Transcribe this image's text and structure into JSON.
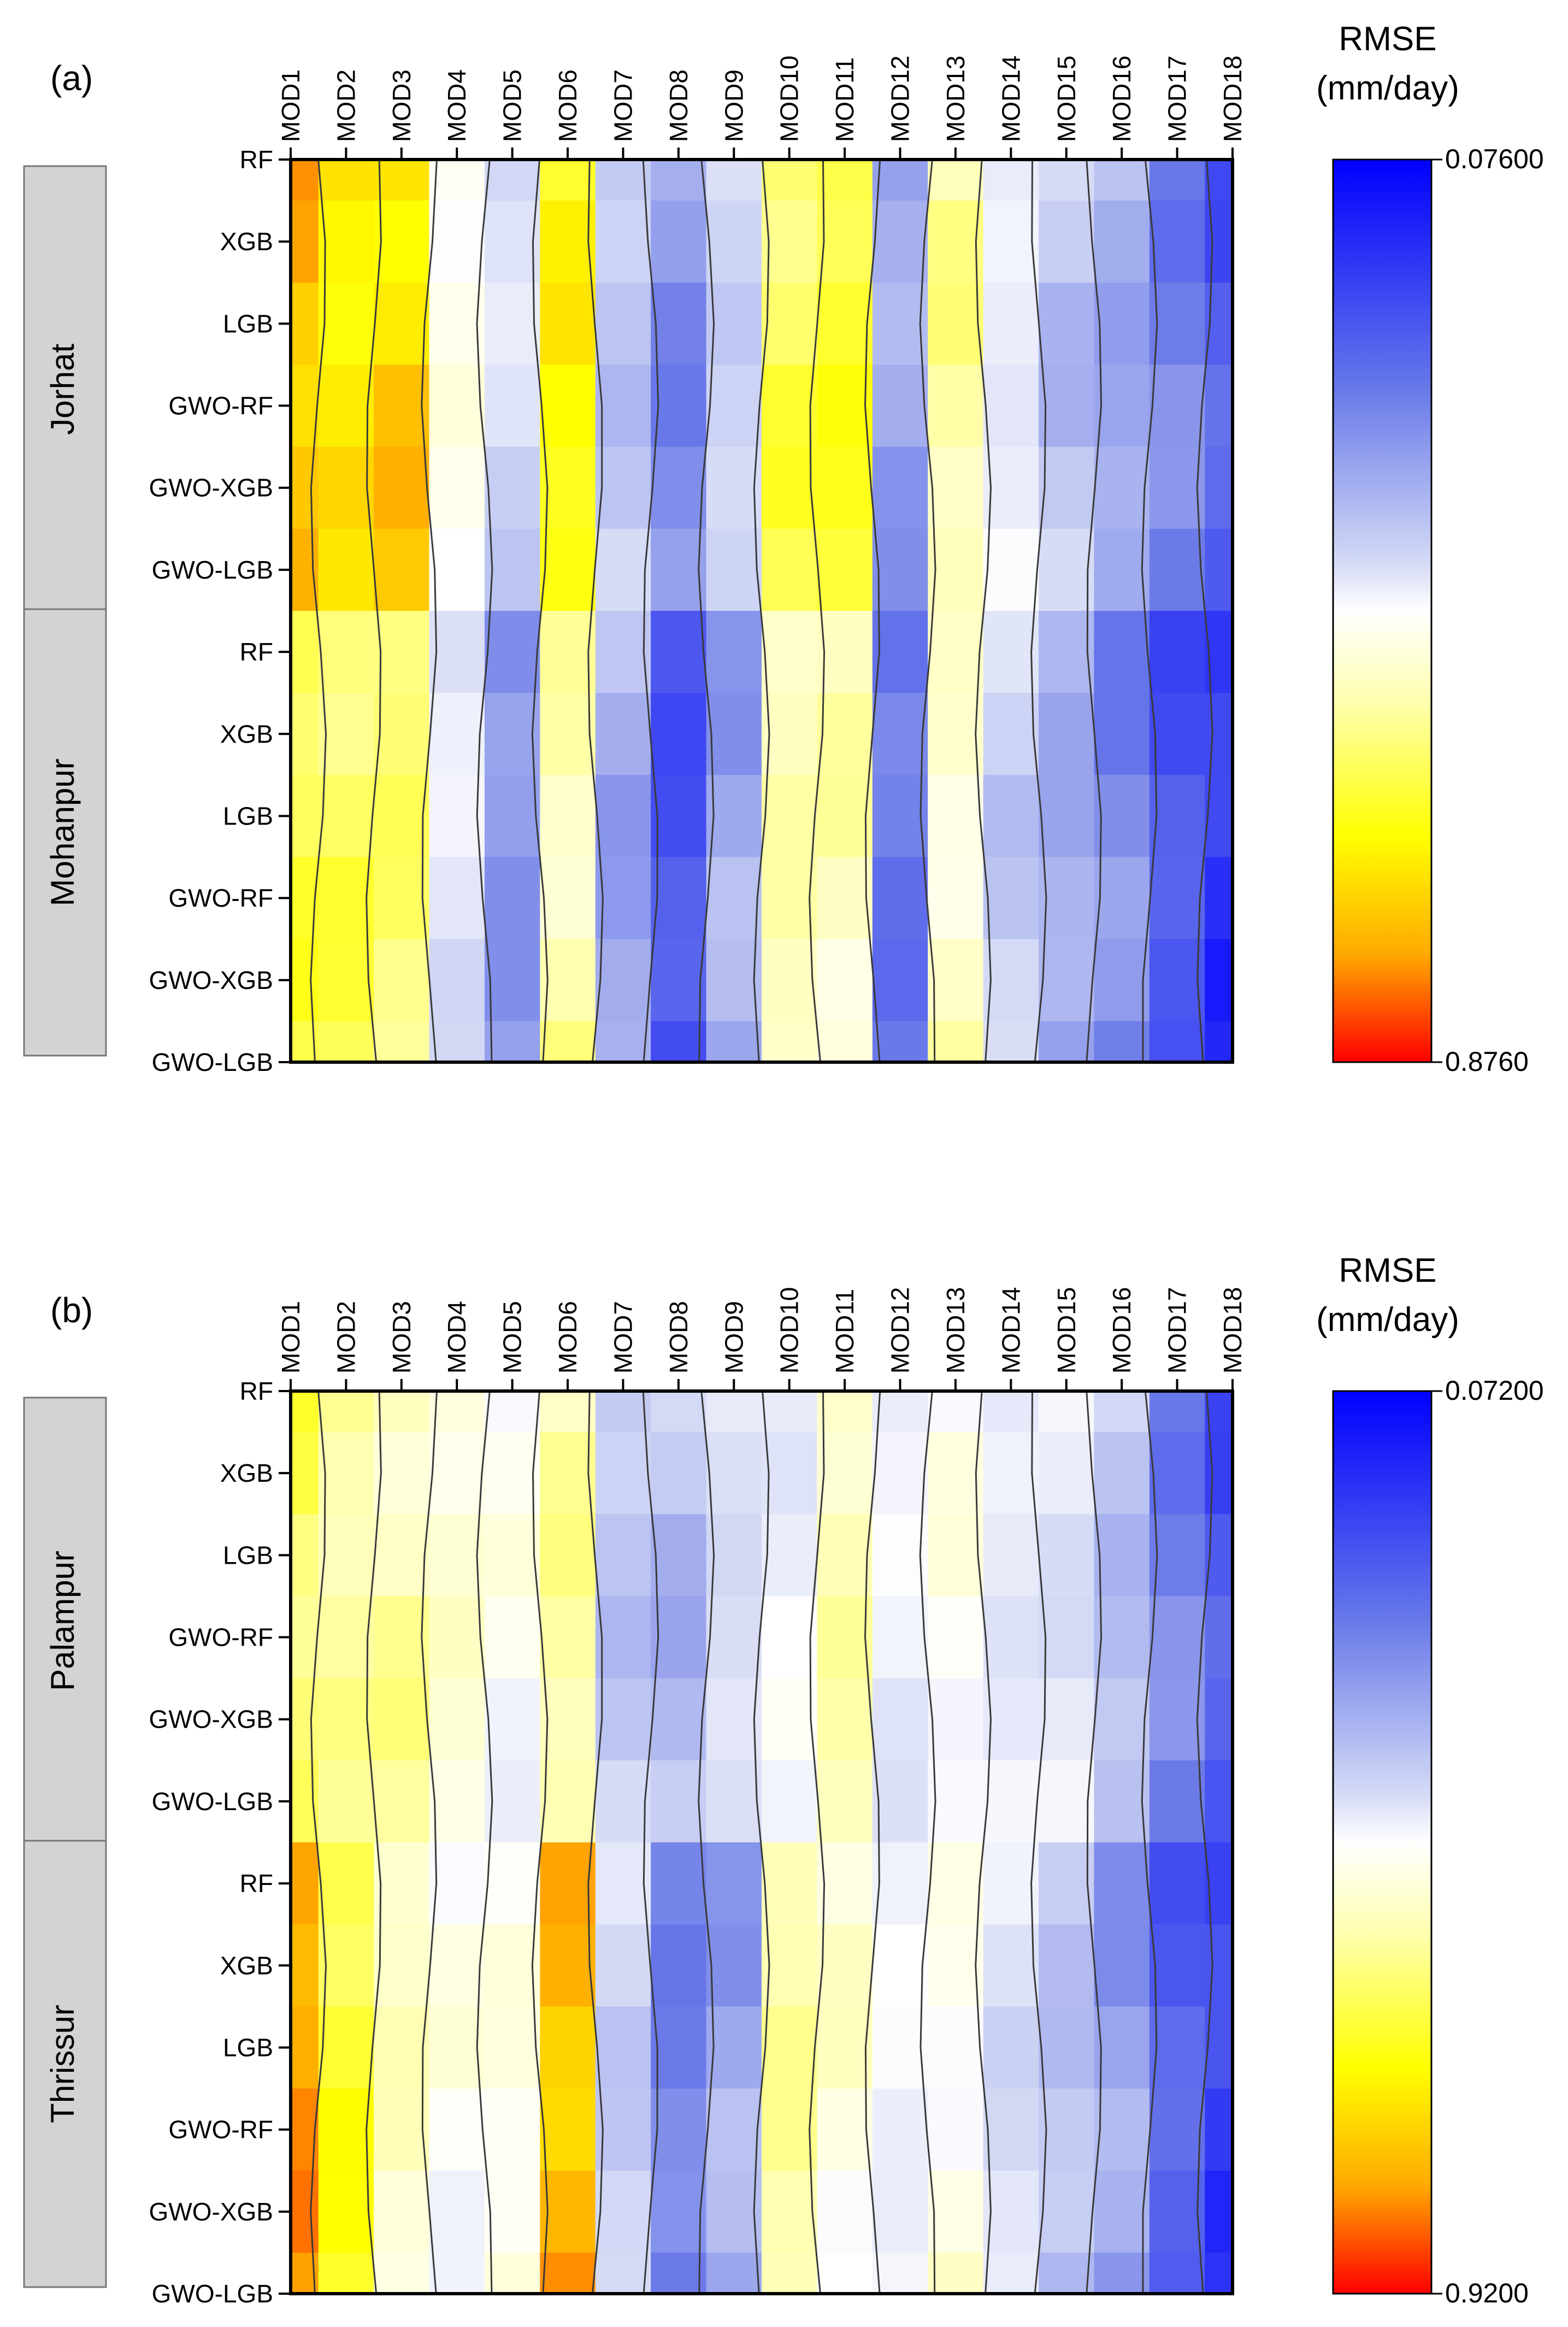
{
  "chart_data": [
    {
      "type": "heatmap",
      "panel_label": "(a)",
      "metric_title": "RMSE",
      "metric_unit": "(mm/day)",
      "x_categories": [
        "MOD1",
        "MOD2",
        "MOD3",
        "MOD4",
        "MOD5",
        "MOD6",
        "MOD7",
        "MOD8",
        "MOD9",
        "MOD10",
        "MOD11",
        "MOD12",
        "MOD13",
        "MOD14",
        "MOD15",
        "MOD16",
        "MOD17",
        "MOD18"
      ],
      "y_categories": [
        "RF",
        "XGB",
        "LGB",
        "GWO-RF",
        "GWO-XGB",
        "GWO-LGB",
        "RF",
        "XGB",
        "LGB",
        "GWO-RF",
        "GWO-XGB",
        "GWO-LGB"
      ],
      "groups": [
        {
          "name": "Jorhat",
          "rows": [
            0,
            5
          ]
        },
        {
          "name": "Mohanpur",
          "rows": [
            6,
            11
          ]
        }
      ],
      "colorbar": {
        "low_label": "0.07600",
        "high_label": "0.8760",
        "low": 0.076,
        "high": 0.876,
        "low_color": "blue",
        "high_color": "red"
      },
      "column_profiles": {
        "Jorhat": [
          0.83,
          0.76,
          0.8,
          0.53,
          0.4,
          0.74,
          0.36,
          0.26,
          0.37,
          0.67,
          0.72,
          0.3,
          0.6,
          0.45,
          0.36,
          0.3,
          0.22,
          0.17
        ],
        "Mohanpur": [
          0.68,
          0.68,
          0.66,
          0.42,
          0.26,
          0.6,
          0.3,
          0.14,
          0.3,
          0.6,
          0.58,
          0.2,
          0.56,
          0.38,
          0.3,
          0.24,
          0.16,
          0.1
        ]
      }
    },
    {
      "type": "heatmap",
      "panel_label": "(b)",
      "metric_title": "RMSE",
      "metric_unit": "(mm/day)",
      "x_categories": [
        "MOD1",
        "MOD2",
        "MOD3",
        "MOD4",
        "MOD5",
        "MOD6",
        "MOD7",
        "MOD8",
        "MOD9",
        "MOD10",
        "MOD11",
        "MOD12",
        "MOD13",
        "MOD14",
        "MOD15",
        "MOD16",
        "MOD17",
        "MOD18"
      ],
      "y_categories": [
        "RF",
        "XGB",
        "LGB",
        "GWO-RF",
        "GWO-XGB",
        "GWO-LGB",
        "RF",
        "XGB",
        "LGB",
        "GWO-RF",
        "GWO-XGB",
        "GWO-LGB"
      ],
      "groups": [
        {
          "name": "Palampur",
          "rows": [
            0,
            5
          ]
        },
        {
          "name": "Thrissur",
          "rows": [
            6,
            11
          ]
        }
      ],
      "colorbar": {
        "low_label": "0.07200",
        "high_label": "0.9200",
        "low": 0.072,
        "high": 0.92,
        "low_color": "blue",
        "high_color": "red"
      },
      "column_profiles": {
        "Palampur": [
          0.66,
          0.6,
          0.6,
          0.56,
          0.5,
          0.6,
          0.36,
          0.34,
          0.4,
          0.46,
          0.6,
          0.46,
          0.5,
          0.44,
          0.44,
          0.34,
          0.22,
          0.16
        ],
        "Thrissur": [
          0.86,
          0.72,
          0.58,
          0.5,
          0.52,
          0.84,
          0.38,
          0.22,
          0.3,
          0.62,
          0.54,
          0.46,
          0.52,
          0.42,
          0.34,
          0.28,
          0.18,
          0.12
        ]
      }
    }
  ]
}
